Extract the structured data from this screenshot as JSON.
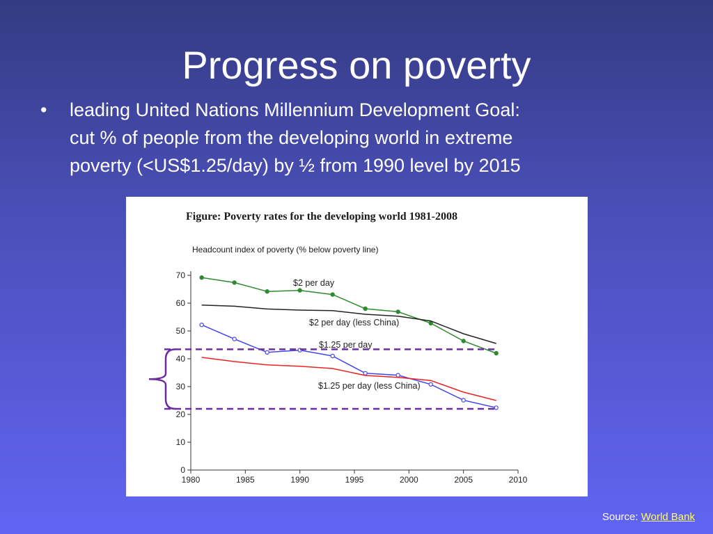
{
  "slide": {
    "title": "Progress on poverty",
    "bullet_symbol": "•",
    "bullet_lines": [
      "leading United Nations Millennium Development Goal:",
      "cut % of people from the developing world in extreme",
      "poverty (<US$1.25/day) by ½ from 1990 level by 2015"
    ],
    "source_label": "Source: ",
    "source_link_text": "World Bank"
  },
  "colors": {
    "two_dollar": "#2e8b2e",
    "two_dollar_less_china": "#222222",
    "one25": "#4444ee",
    "one25_less_china": "#ee2222",
    "annotation": "#6a2ea0",
    "link": "#ffff66"
  },
  "chart_data": {
    "type": "line",
    "title": "Figure: Poverty rates for the developing world 1981-2008",
    "ylabel": "Headcount index of poverty (% below poverty line)",
    "xlabel": "",
    "xlim": [
      1980,
      2010
    ],
    "ylim": [
      0,
      70
    ],
    "xticks": [
      1980,
      1985,
      1990,
      1995,
      2000,
      2005,
      2010
    ],
    "yticks": [
      0,
      10,
      20,
      30,
      40,
      50,
      60,
      70
    ],
    "grid": false,
    "series": [
      {
        "name": "$2 per day",
        "color_key": "two_dollar",
        "markers": "filled",
        "x": [
          1981,
          1984,
          1987,
          1990,
          1993,
          1996,
          1999,
          2002,
          2005,
          2008
        ],
        "y": [
          69.2,
          67.4,
          64.2,
          64.6,
          63.1,
          58.0,
          56.9,
          52.8,
          46.4,
          42.0
        ]
      },
      {
        "name": "$2 per day (less China)",
        "color_key": "two_dollar_less_china",
        "markers": "none",
        "x": [
          1981,
          1984,
          1987,
          1990,
          1993,
          1996,
          1999,
          2002,
          2005,
          2008
        ],
        "y": [
          59.3,
          58.9,
          57.9,
          57.5,
          57.3,
          56.0,
          55.3,
          53.6,
          49.0,
          45.5
        ]
      },
      {
        "name": "$1.25 per day",
        "color_key": "one25",
        "markers": "open",
        "x": [
          1981,
          1984,
          1987,
          1990,
          1993,
          1996,
          1999,
          2002,
          2005,
          2008
        ],
        "y": [
          52.2,
          47.1,
          42.3,
          43.1,
          41.0,
          34.8,
          34.1,
          30.8,
          25.1,
          22.4
        ]
      },
      {
        "name": "$1.25 per day (less China)",
        "color_key": "one25_less_china",
        "markers": "none",
        "x": [
          1981,
          1984,
          1987,
          1990,
          1993,
          1996,
          1999,
          2002,
          2005,
          2008
        ],
        "y": [
          40.5,
          39.0,
          37.8,
          37.3,
          36.5,
          34.0,
          33.3,
          32.2,
          28.0,
          25.0
        ]
      }
    ],
    "annotations": {
      "dashed_reference_levels": [
        43.4,
        22.0
      ]
    }
  }
}
